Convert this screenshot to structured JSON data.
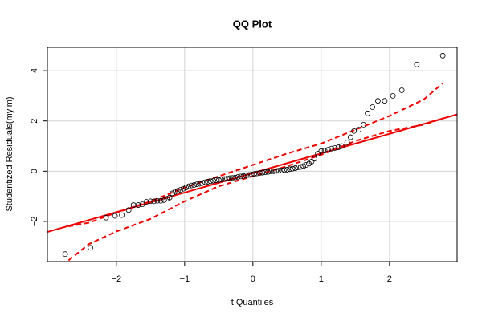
{
  "chart_data": {
    "type": "qq",
    "title": "QQ Plot",
    "xlabel": "t Quantiles",
    "ylabel": "Studentized Residuals(mylm)",
    "xlim": [
      -3.01,
      2.99
    ],
    "ylim": [
      -3.6,
      4.93
    ],
    "xticks": [
      {
        "value": -2,
        "label": "−2"
      },
      {
        "value": -1,
        "label": "−1"
      },
      0,
      1,
      2
    ],
    "yticks": [
      {
        "value": -2,
        "label": "−2"
      },
      0,
      2,
      4
    ],
    "grid": true,
    "points": {
      "color": "#000000",
      "x": [
        -2.75,
        -2.38,
        -2.15,
        -2.02,
        -1.92,
        -1.82,
        -1.75,
        -1.68,
        -1.62,
        -1.56,
        -1.5,
        -1.45,
        -1.4,
        -1.35,
        -1.3,
        -1.26,
        -1.22,
        -1.18,
        -1.14,
        -1.1,
        -1.06,
        -1.02,
        -0.98,
        -0.94,
        -0.9,
        -0.86,
        -0.82,
        -0.78,
        -0.74,
        -0.7,
        -0.66,
        -0.62,
        -0.58,
        -0.54,
        -0.5,
        -0.46,
        -0.42,
        -0.38,
        -0.34,
        -0.3,
        -0.26,
        -0.22,
        -0.18,
        -0.14,
        -0.1,
        -0.06,
        -0.02,
        0.02,
        0.06,
        0.1,
        0.14,
        0.18,
        0.22,
        0.26,
        0.3,
        0.34,
        0.38,
        0.42,
        0.46,
        0.5,
        0.54,
        0.58,
        0.62,
        0.66,
        0.7,
        0.74,
        0.78,
        0.82,
        0.86,
        0.9,
        0.95,
        1.0,
        1.05,
        1.1,
        1.15,
        1.2,
        1.25,
        1.3,
        1.38,
        1.43,
        1.48,
        1.55,
        1.62,
        1.68,
        1.75,
        1.83,
        1.93,
        2.05,
        2.18,
        2.4,
        2.78
      ],
      "y": [
        -3.3,
        -3.05,
        -1.85,
        -1.78,
        -1.75,
        -1.55,
        -1.35,
        -1.35,
        -1.32,
        -1.22,
        -1.2,
        -1.2,
        -1.18,
        -1.18,
        -1.15,
        -1.1,
        -1.05,
        -0.88,
        -0.82,
        -0.78,
        -0.74,
        -0.7,
        -0.65,
        -0.6,
        -0.57,
        -0.55,
        -0.52,
        -0.5,
        -0.47,
        -0.44,
        -0.42,
        -0.4,
        -0.38,
        -0.36,
        -0.35,
        -0.33,
        -0.31,
        -0.3,
        -0.28,
        -0.27,
        -0.25,
        -0.23,
        -0.21,
        -0.19,
        -0.17,
        -0.15,
        -0.13,
        -0.11,
        -0.09,
        -0.07,
        -0.06,
        -0.04,
        -0.03,
        -0.01,
        0,
        0.01,
        0.02,
        0.03,
        0.05,
        0.06,
        0.08,
        0.1,
        0.12,
        0.15,
        0.17,
        0.2,
        0.25,
        0.3,
        0.38,
        0.5,
        0.7,
        0.8,
        0.82,
        0.85,
        0.9,
        0.92,
        0.95,
        1.0,
        1.15,
        1.35,
        1.6,
        1.65,
        1.85,
        2.3,
        2.55,
        2.8,
        2.8,
        3.0,
        3.22,
        4.25,
        4.6
      ]
    },
    "reference_line": {
      "color": "#ee0000",
      "x": [
        -3.01,
        2.99
      ],
      "y": [
        -2.42,
        2.26
      ]
    },
    "bands": [
      {
        "color": "#ee0000",
        "x": [
          -2.7,
          -2.4,
          -2.0,
          -1.5,
          -1.0,
          -0.5,
          0,
          0.5,
          1.0,
          1.5,
          2.0,
          2.5,
          2.78
        ],
        "y": [
          -3.55,
          -2.9,
          -2.4,
          -1.9,
          -1.2,
          -0.6,
          -0.2,
          0.2,
          0.65,
          1.2,
          1.6,
          1.85,
          2.1
        ]
      },
      {
        "color": "#ee0000",
        "x": [
          -2.7,
          -2.4,
          -2.0,
          -1.5,
          -1.0,
          -0.5,
          0,
          0.5,
          1.0,
          1.5,
          2.0,
          2.5,
          2.78
        ],
        "y": [
          -2.2,
          -2.05,
          -1.65,
          -1.2,
          -0.65,
          -0.2,
          0.25,
          0.7,
          1.1,
          1.65,
          2.2,
          2.85,
          3.5
        ]
      }
    ]
  }
}
